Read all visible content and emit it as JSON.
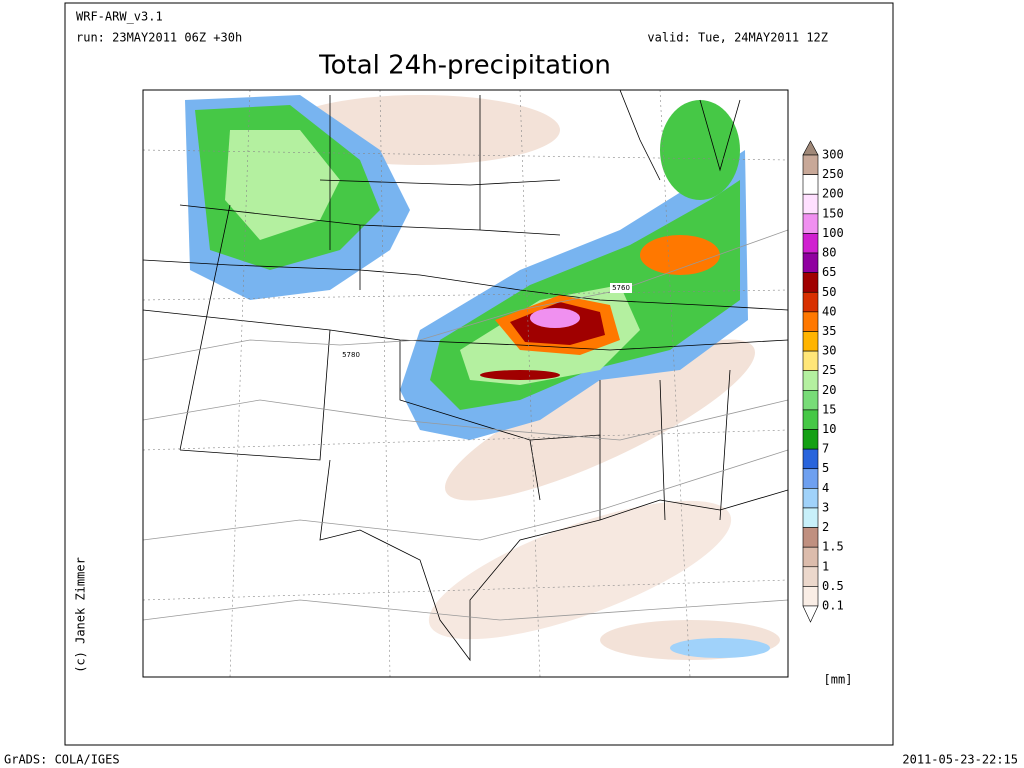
{
  "header": {
    "model": "WRF-ARW_v3.1",
    "run": "run: 23MAY2011 06Z +30h",
    "valid": "valid: Tue, 24MAY2011 12Z",
    "title": "Total 24h-precipitation"
  },
  "map": {
    "contour_labels": [
      "5760",
      "5780"
    ],
    "credit": "(c) Janek Zimmer"
  },
  "colorbar": {
    "labels": [
      "300",
      "250",
      "200",
      "150",
      "100",
      "80",
      "65",
      "50",
      "40",
      "35",
      "30",
      "25",
      "20",
      "15",
      "10",
      "7",
      "5",
      "4",
      "3",
      "2",
      "1.5",
      "1",
      "0.5",
      "0.1"
    ],
    "colors": [
      "#a08878",
      "#c8a898",
      "#ffffff",
      "#ffe0ff",
      "#f090f0",
      "#d020d0",
      "#9000a0",
      "#a00000",
      "#d83000",
      "#ff7800",
      "#ffb400",
      "#ffe678",
      "#b4f0a0",
      "#78dc78",
      "#46c846",
      "#14a014",
      "#2864dc",
      "#6ea0f0",
      "#a0d2fa",
      "#c8f0fa",
      "#c09080",
      "#dcbcac",
      "#ecd8cc",
      "#faeee6",
      "#ffffff"
    ],
    "unit": "[mm]"
  },
  "footer": {
    "left": "GrADS: COLA/IGES",
    "right": "2011-05-23-22:15"
  }
}
